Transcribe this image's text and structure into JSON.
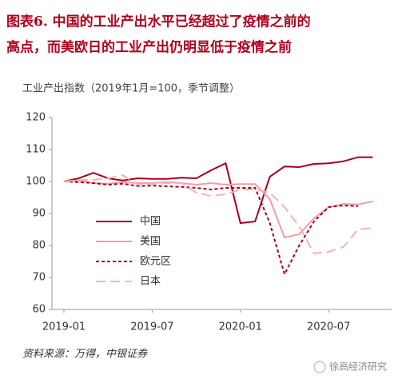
{
  "chart_data": {
    "type": "line",
    "title": [
      "图表6.  中国的工业产出水平已经超过了疫情之前的",
      "高点，而美欧日的工业产出仍明显低于疫情之前"
    ],
    "subtitle": "工业产出指数（2019年1月=100，季节调整）",
    "source": "资料来源：万得，中银证券",
    "watermark": "徐高经济研究",
    "x": [
      "2019-01",
      "2019-02",
      "2019-03",
      "2019-04",
      "2019-05",
      "2019-06",
      "2019-07",
      "2019-08",
      "2019-09",
      "2019-10",
      "2019-11",
      "2019-12",
      "2020-01",
      "2020-02",
      "2020-03",
      "2020-04",
      "2020-05",
      "2020-06",
      "2020-07",
      "2020-08",
      "2020-09",
      "2020-10"
    ],
    "xticks": [
      "2019-01",
      "2019-07",
      "2020-01",
      "2020-07"
    ],
    "ylim": [
      60,
      120
    ],
    "yticks": [
      60,
      70,
      80,
      90,
      100,
      110,
      120
    ],
    "legend": "lower-left",
    "series": [
      {
        "name": "中国",
        "color": "#a50021",
        "dash": "solid",
        "values": [
          100,
          101,
          102.7,
          101,
          100.3,
          101,
          100.8,
          100.8,
          101.2,
          101,
          103.5,
          105.7,
          87,
          87.5,
          101.5,
          104.7,
          104.5,
          105.5,
          105.7,
          106.3,
          107.6,
          107.6
        ]
      },
      {
        "name": "美国",
        "color": "#f09ea4",
        "dash": "solid",
        "values": [
          100,
          100.3,
          99.5,
          99.3,
          99.8,
          99.5,
          99.5,
          99.8,
          99.5,
          99,
          99.5,
          99,
          99.2,
          99.2,
          94.5,
          82.5,
          83.5,
          88.5,
          92,
          93,
          92.8,
          93.8
        ]
      },
      {
        "name": "欧元区",
        "color": "#a50021",
        "dash": "short",
        "values": [
          100,
          99.8,
          99.5,
          99,
          99.3,
          98.6,
          98.7,
          98.5,
          98.3,
          98,
          97.5,
          98,
          98,
          98,
          87,
          71,
          80,
          87.5,
          92,
          92.5,
          92.3,
          null
        ]
      },
      {
        "name": "日本",
        "color": "#f2b3b3",
        "dash": "long",
        "values": [
          100,
          100.5,
          100.5,
          101,
          102,
          99,
          99.2,
          99.5,
          99.5,
          96.5,
          95.5,
          96,
          97.5,
          97.5,
          96.5,
          92,
          86,
          77.5,
          78,
          79.5,
          85,
          85.5
        ]
      }
    ]
  }
}
